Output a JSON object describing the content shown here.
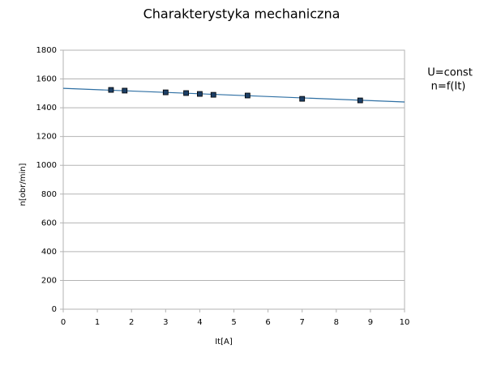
{
  "chart_data": {
    "type": "scatter",
    "title": "Charakterystyka mechaniczna",
    "x_label": "It[A]",
    "y_label": "n[obr/min]",
    "annotations": [
      "U=const",
      "n=f(It)"
    ],
    "x": [
      1.4,
      1.8,
      3.0,
      3.6,
      4.0,
      4.4,
      5.4,
      7.0,
      8.7
    ],
    "values": [
      1524,
      1519,
      1507,
      1502,
      1496,
      1490,
      1485,
      1462,
      1451
    ],
    "color": "#1c3f66",
    "trendline": {
      "x": [
        0,
        10
      ],
      "values": [
        1535,
        1440
      ],
      "color": "#2e6fa3"
    },
    "xlim": [
      0,
      10
    ],
    "xticks": [
      0,
      1,
      2,
      3,
      4,
      5,
      6,
      7,
      8,
      9,
      10
    ],
    "ylim": [
      0,
      1800
    ],
    "yticks": [
      0,
      200,
      400,
      600,
      800,
      1000,
      1200,
      1400,
      1600,
      1800
    ],
    "grid": true
  }
}
